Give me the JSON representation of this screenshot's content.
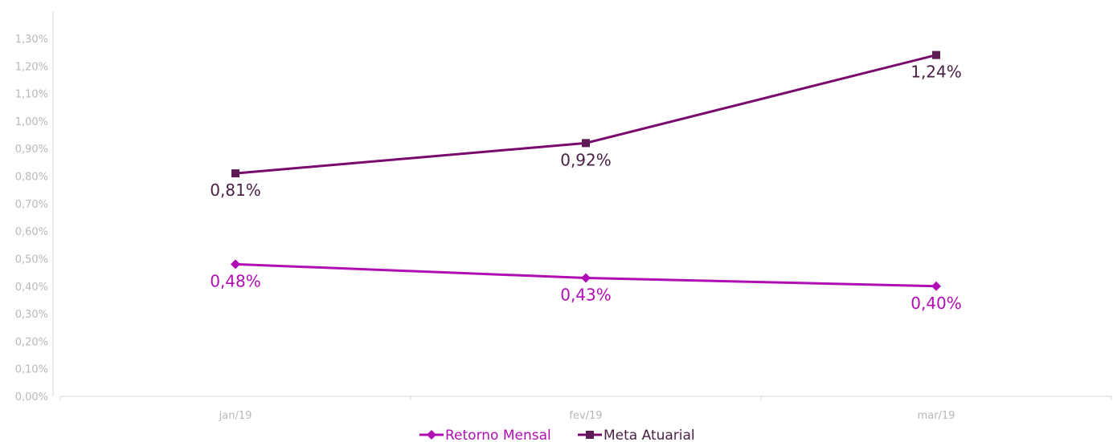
{
  "chart_data": {
    "type": "line",
    "categories": [
      "jan/19",
      "fev/19",
      "mar/19"
    ],
    "series": [
      {
        "name": "Retorno Mensal",
        "values": [
          0.48,
          0.43,
          0.4
        ],
        "labels": [
          "0,48%",
          "0,43%",
          "0,40%"
        ],
        "color": "#b00db5",
        "marker": "diamond"
      },
      {
        "name": "Meta Atuarial",
        "values": [
          0.81,
          0.92,
          1.24
        ],
        "labels": [
          "0,81%",
          "0,92%",
          "1,24%"
        ],
        "color": "#7b0a6e",
        "label_color": "#4a1f44",
        "marker": "square"
      }
    ],
    "yticks": [
      "0,00%",
      "0,10%",
      "0,20%",
      "0,30%",
      "0,40%",
      "0,50%",
      "0,60%",
      "0,70%",
      "0,80%",
      "0,90%",
      "1,00%",
      "1,10%",
      "1,20%",
      "1,30%"
    ],
    "ylim": [
      0,
      1.3
    ],
    "legend_position": "bottom",
    "grid": false
  }
}
